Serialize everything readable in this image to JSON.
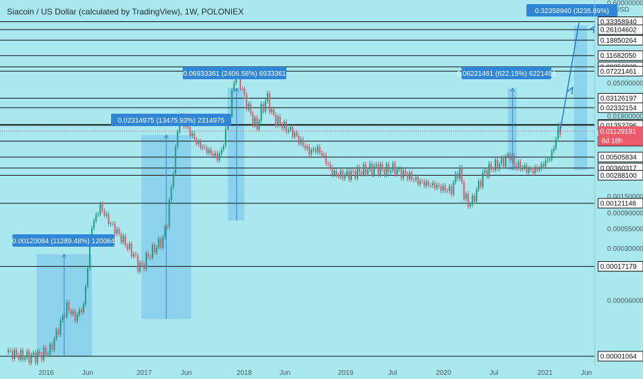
{
  "header": {
    "title": "Siacoin / US Dollar (calculated by TradingView), 1W, POLONIEX",
    "currency": "USD"
  },
  "chart_data": {
    "type": "candlestick",
    "scale": "log",
    "ylim": [
      5e-06,
      0.6
    ],
    "x_ticks": [
      "2016",
      "Jun",
      "2017",
      "Jun",
      "2018",
      "Jun",
      "2019",
      "Jul",
      "2020",
      "Jul",
      "2021",
      "Jun"
    ],
    "y_ticks": [
      "0.60000000",
      "0.18000000",
      "0.05000000",
      "0.01800000",
      "0.00500000",
      "0.00150000",
      "0.00090000",
      "0.00055000",
      "0.00030000",
      "0.00006000"
    ],
    "levels": [
      "0.33358940",
      "0.26104602",
      "0.18850264",
      "0.11682050",
      "0.08250000",
      "0.07221461",
      "0.03126197",
      "0.02332154",
      "0.01388071",
      "0.01352796",
      "0.00827767",
      "0.00505834",
      "0.00360317",
      "0.00288100",
      "0.00121148",
      "0.00017179",
      "0.00001064"
    ],
    "current_price": "0.01129191",
    "countdown": "6d 18h",
    "annotations": [
      "0.00120084 (11289.48%) 120084",
      "0.02314975 (13475.93%) 2314975",
      "0.06933361 (2406.58%) 6933361",
      "0.06221461 (622.15%) 6221461",
      "0.32358940 (3235.89%)"
    ],
    "weekly_close_path": [
      [
        0,
        1.2e-05
      ],
      [
        5,
        1.1e-05
      ],
      [
        10,
        1.05e-05
      ],
      [
        15,
        1.1e-05
      ],
      [
        20,
        1.3e-05
      ],
      [
        24,
        2.5e-05
      ],
      [
        28,
        5e-05
      ],
      [
        32,
        3.5e-05
      ],
      [
        36,
        5e-05
      ],
      [
        40,
        0.0006
      ],
      [
        44,
        0.0011
      ],
      [
        48,
        0.0007
      ],
      [
        52,
        0.0005
      ],
      [
        56,
        0.00035
      ],
      [
        60,
        0.00025
      ],
      [
        62,
        0.00018
      ],
      [
        64,
        0.00017
      ],
      [
        66,
        0.00022
      ],
      [
        70,
        0.0003
      ],
      [
        74,
        0.0004
      ],
      [
        76,
        0.0007
      ],
      [
        78,
        0.002
      ],
      [
        80,
        0.006
      ],
      [
        81,
        0.012
      ],
      [
        82,
        0.018
      ],
      [
        86,
        0.012
      ],
      [
        90,
        0.008
      ],
      [
        94,
        0.0065
      ],
      [
        98,
        0.0055
      ],
      [
        100,
        0.005
      ],
      [
        102,
        0.006
      ],
      [
        104,
        0.011
      ],
      [
        106,
        0.02
      ],
      [
        107,
        0.035
      ],
      [
        108,
        0.055
      ],
      [
        109,
        0.07
      ],
      [
        111,
        0.05
      ],
      [
        113,
        0.032
      ],
      [
        115,
        0.023
      ],
      [
        117,
        0.016
      ],
      [
        119,
        0.013
      ],
      [
        121,
        0.022
      ],
      [
        123,
        0.028
      ],
      [
        124,
        0.032
      ],
      [
        126,
        0.02
      ],
      [
        128,
        0.016
      ],
      [
        132,
        0.013
      ],
      [
        136,
        0.011
      ],
      [
        140,
        0.008
      ],
      [
        144,
        0.006
      ],
      [
        148,
        0.0065
      ],
      [
        150,
        0.0055
      ],
      [
        152,
        0.0045
      ],
      [
        154,
        0.0035
      ],
      [
        156,
        0.003
      ],
      [
        160,
        0.0029
      ],
      [
        164,
        0.003
      ],
      [
        168,
        0.0033
      ],
      [
        172,
        0.0035
      ],
      [
        176,
        0.0037
      ],
      [
        180,
        0.0034
      ],
      [
        184,
        0.0036
      ],
      [
        188,
        0.0031
      ],
      [
        192,
        0.0028
      ],
      [
        196,
        0.0024
      ],
      [
        200,
        0.0022
      ],
      [
        204,
        0.0021
      ],
      [
        208,
        0.0019
      ],
      [
        212,
        0.0018
      ],
      [
        214,
        0.0028
      ],
      [
        216,
        0.0033
      ],
      [
        218,
        0.0016
      ],
      [
        220,
        0.0012
      ],
      [
        222,
        0.0013
      ],
      [
        224,
        0.0018
      ],
      [
        226,
        0.0025
      ],
      [
        228,
        0.0032
      ],
      [
        232,
        0.0038
      ],
      [
        236,
        0.0043
      ],
      [
        240,
        0.0055
      ],
      [
        242,
        0.004
      ],
      [
        246,
        0.0037
      ],
      [
        250,
        0.0033
      ],
      [
        254,
        0.0036
      ],
      [
        258,
        0.0046
      ],
      [
        260,
        0.0056
      ],
      [
        262,
        0.009
      ],
      [
        263,
        0.0125
      ],
      [
        264,
        0.0114
      ]
    ],
    "projection": [
      [
        264,
        0.0114
      ],
      [
        269,
        0.0722
      ],
      [
        273,
        0.3236
      ]
    ]
  }
}
